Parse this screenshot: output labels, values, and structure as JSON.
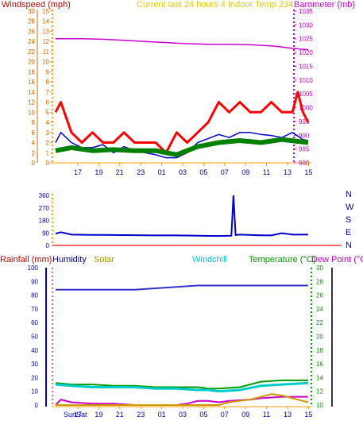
{
  "chart_data": [
    {
      "type": "line",
      "panel": "wind-pressure",
      "title": "Current last 24 hours 4 Indoor Temp 234",
      "y_left_label": "Windspeed (mph)",
      "y_left2_ticks": [
        0,
        2,
        4,
        6,
        8,
        10,
        12,
        14,
        16,
        18,
        20,
        22,
        24,
        26,
        28,
        30
      ],
      "y_left_ticks": [
        0,
        1,
        2,
        3,
        4,
        5,
        6,
        7,
        8,
        9,
        10,
        11,
        12,
        13,
        14,
        15
      ],
      "y_right_label": "Barometer (mb)",
      "y_right_ticks": [
        980,
        985,
        990,
        995,
        1000,
        1005,
        1010,
        1015,
        1020,
        1025,
        1030,
        1035
      ],
      "x_ticks": [
        "17",
        "19",
        "21",
        "23",
        "01",
        "03",
        "05",
        "07",
        "09",
        "11",
        "13",
        "15"
      ],
      "x_range_hours": [
        15.5,
        39.5
      ],
      "series": [
        {
          "name": "Barometer (mb)",
          "color": "#cc00cc",
          "axis": "right",
          "points": [
            [
              15.5,
              1025
            ],
            [
              18,
              1025
            ],
            [
              20,
              1024.8
            ],
            [
              22,
              1024.4
            ],
            [
              24,
              1024
            ],
            [
              26,
              1023.6
            ],
            [
              28,
              1023.2
            ],
            [
              30,
              1023
            ],
            [
              32,
              1023
            ],
            [
              34,
              1022.8
            ],
            [
              36,
              1022.4
            ],
            [
              37,
              1022
            ],
            [
              38,
              1021.5
            ],
            [
              39.5,
              1021
            ]
          ]
        },
        {
          "name": "Wind gust",
          "color": "#ff0000",
          "axis": "left",
          "points": [
            [
              15.5,
              5
            ],
            [
              16,
              6
            ],
            [
              17,
              3
            ],
            [
              18,
              2
            ],
            [
              19,
              3
            ],
            [
              20,
              2
            ],
            [
              21,
              2
            ],
            [
              22,
              3
            ],
            [
              23,
              2
            ],
            [
              24,
              2
            ],
            [
              25,
              2
            ],
            [
              26,
              1
            ],
            [
              27,
              3
            ],
            [
              28,
              2
            ],
            [
              29,
              3
            ],
            [
              30,
              4
            ],
            [
              31,
              6
            ],
            [
              32,
              5
            ],
            [
              33,
              6
            ],
            [
              34,
              5
            ],
            [
              35,
              5
            ],
            [
              36,
              6
            ],
            [
              37,
              5
            ],
            [
              38,
              5
            ],
            [
              38.5,
              7
            ],
            [
              39,
              5
            ],
            [
              39.5,
              4
            ]
          ]
        },
        {
          "name": "Wind avg",
          "color": "#0000cc",
          "axis": "left",
          "points": [
            [
              15.5,
              2
            ],
            [
              16,
              3
            ],
            [
              17,
              2
            ],
            [
              18,
              1.5
            ],
            [
              19,
              1.5
            ],
            [
              20,
              1.8
            ],
            [
              21,
              1
            ],
            [
              22,
              1.6
            ],
            [
              23,
              1.2
            ],
            [
              24,
              1
            ],
            [
              25,
              0.8
            ],
            [
              26,
              0.5
            ],
            [
              27,
              0.5
            ],
            [
              28,
              1
            ],
            [
              29,
              2
            ],
            [
              30,
              2.4
            ],
            [
              31,
              2.8
            ],
            [
              32,
              2.5
            ],
            [
              33,
              3
            ],
            [
              34,
              3
            ],
            [
              35,
              2.8
            ],
            [
              36,
              2.7
            ],
            [
              37,
              2.5
            ],
            [
              38,
              3
            ],
            [
              39,
              2.3
            ],
            [
              39.5,
              2.2
            ]
          ]
        },
        {
          "name": "Wind direction band",
          "color": "#008000",
          "axis": "left",
          "points": [
            [
              15.5,
              1.2
            ],
            [
              17,
              1.5
            ],
            [
              19,
              1.2
            ],
            [
              21,
              1.3
            ],
            [
              23,
              1.2
            ],
            [
              25,
              1.2
            ],
            [
              27,
              0.8
            ],
            [
              29,
              1.6
            ],
            [
              31,
              2
            ],
            [
              33,
              2.2
            ],
            [
              35,
              2
            ],
            [
              37,
              2.3
            ],
            [
              39.5,
              2
            ]
          ]
        }
      ]
    },
    {
      "type": "line",
      "panel": "wind-direction",
      "y_ticks": [
        0,
        90,
        180,
        270,
        360
      ],
      "y_right_labels": [
        "N",
        "W",
        "S",
        "E",
        "N"
      ],
      "series": [
        {
          "name": "Direction",
          "color": "#0000cc",
          "points": [
            [
              15.5,
              85
            ],
            [
              16,
              95
            ],
            [
              17,
              78
            ],
            [
              19,
              76
            ],
            [
              21,
              75
            ],
            [
              23,
              74
            ],
            [
              25,
              72
            ],
            [
              27,
              72
            ],
            [
              29,
              70
            ],
            [
              31,
              68
            ],
            [
              32.2,
              70
            ],
            [
              32.4,
              360
            ],
            [
              32.6,
              75
            ],
            [
              33,
              78
            ],
            [
              35,
              73
            ],
            [
              36,
              72
            ],
            [
              37,
              88
            ],
            [
              38,
              78
            ],
            [
              39.5,
              78
            ]
          ]
        }
      ]
    },
    {
      "type": "line",
      "panel": "rain-humidity-temp",
      "labels": [
        "Rainfall (mm)",
        "Humidity",
        "Solar",
        "Windchill",
        "Temperature (°C)",
        "Dew Point (°C)"
      ],
      "y_left_ticks": [
        0,
        10,
        20,
        30,
        40,
        50,
        60,
        70,
        80,
        90,
        100
      ],
      "y_right_ticks": [
        10,
        12,
        14,
        16,
        18,
        20,
        22,
        24,
        26,
        28,
        30
      ],
      "x_ticks": [
        "17",
        "19",
        "21",
        "23",
        "01",
        "03",
        "05",
        "07",
        "09",
        "11",
        "13",
        "15"
      ],
      "day_labels": [
        "Sun",
        "Sat"
      ],
      "series": [
        {
          "name": "Humidity",
          "color": "#3333cc",
          "points": [
            [
              15.5,
              84
            ],
            [
              19,
              84
            ],
            [
              21,
              84
            ],
            [
              23,
              84
            ],
            [
              25,
              85
            ],
            [
              27,
              86
            ],
            [
              29,
              87
            ],
            [
              31,
              87
            ],
            [
              33,
              87
            ],
            [
              35,
              87
            ],
            [
              37,
              87
            ],
            [
              39.5,
              87
            ]
          ]
        },
        {
          "name": "Temperature",
          "color": "#009900",
          "points": [
            [
              15.5,
              16
            ],
            [
              17,
              15
            ],
            [
              19,
              15
            ],
            [
              21,
              14
            ],
            [
              23,
              14
            ],
            [
              25,
              13
            ],
            [
              27,
              13
            ],
            [
              29,
              13
            ],
            [
              30,
              12
            ],
            [
              31,
              12
            ],
            [
              33,
              13
            ],
            [
              35,
              17
            ],
            [
              37,
              18
            ],
            [
              39.5,
              18
            ]
          ]
        },
        {
          "name": "Windchill",
          "color": "#00cccc",
          "points": [
            [
              15.5,
              15
            ],
            [
              17,
              14
            ],
            [
              19,
              13
            ],
            [
              21,
              13
            ],
            [
              23,
              13
            ],
            [
              25,
              12
            ],
            [
              27,
              12
            ],
            [
              29,
              11
            ],
            [
              30,
              11
            ],
            [
              31,
              10
            ],
            [
              33,
              11
            ],
            [
              35,
              14
            ],
            [
              37,
              15
            ],
            [
              39.5,
              16
            ]
          ]
        },
        {
          "name": "Dew Point",
          "color": "#cc00cc",
          "points": [
            [
              15.5,
              0
            ],
            [
              16,
              4
            ],
            [
              17,
              2
            ],
            [
              19,
              1
            ],
            [
              21,
              1
            ],
            [
              23,
              0
            ],
            [
              25,
              0
            ],
            [
              27,
              0
            ],
            [
              28,
              1
            ],
            [
              29,
              3
            ],
            [
              30,
              3
            ],
            [
              31,
              2
            ],
            [
              32,
              3
            ],
            [
              34,
              4
            ],
            [
              35,
              5
            ],
            [
              37,
              6
            ],
            [
              39.5,
              6
            ]
          ]
        },
        {
          "name": "Solar",
          "color": "#cc9900",
          "points": [
            [
              15.5,
              0
            ],
            [
              31,
              0
            ],
            [
              32,
              2
            ],
            [
              33,
              3
            ],
            [
              34,
              4
            ],
            [
              35,
              6
            ],
            [
              36,
              8
            ],
            [
              37,
              7
            ],
            [
              38,
              5
            ],
            [
              39,
              3
            ],
            [
              39.5,
              2
            ]
          ]
        }
      ]
    }
  ]
}
